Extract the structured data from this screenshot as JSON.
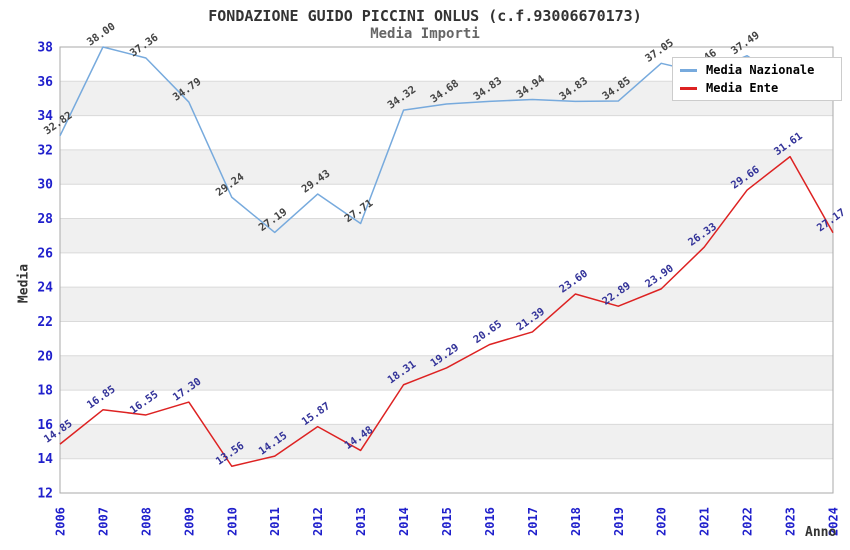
{
  "title": "FONDAZIONE GUIDO PICCINI ONLUS (c.f.93006670173)",
  "subtitle": "Media Importi",
  "chart_data": {
    "type": "line",
    "x": [
      2006,
      2007,
      2008,
      2009,
      2010,
      2011,
      2012,
      2013,
      2014,
      2015,
      2016,
      2017,
      2018,
      2019,
      2020,
      2021,
      2022,
      2023,
      2024
    ],
    "xlabel": "Anno",
    "ylabel": "Media",
    "ylim": [
      12,
      38
    ],
    "ytick_step": 2,
    "grid": true,
    "band_fill": true,
    "legend_position": "top-right",
    "series": [
      {
        "name": "Media Nazionale",
        "color": "#77aadd",
        "label_color": "#444444",
        "values": [
          32.82,
          38.0,
          37.36,
          34.79,
          29.24,
          27.19,
          29.43,
          27.71,
          34.32,
          34.68,
          34.83,
          34.94,
          34.83,
          34.85,
          37.05,
          36.46,
          37.49,
          35.8,
          35.0
        ],
        "point_labels": [
          "32.82",
          "38.00",
          "37.36",
          "34.79",
          "29.24",
          "27.19",
          "29.43",
          "27.71",
          "34.32",
          "34.68",
          "34.83",
          "34.94",
          "34.83",
          "34.85",
          "37.05",
          "36.46",
          "37.49",
          null,
          null
        ]
      },
      {
        "name": "Media Ente",
        "color": "#dd2222",
        "label_color": "#333399",
        "values": [
          14.85,
          16.85,
          16.55,
          17.3,
          13.56,
          14.15,
          15.87,
          14.48,
          18.31,
          19.29,
          20.65,
          21.39,
          23.6,
          22.89,
          23.9,
          26.33,
          29.66,
          31.61,
          27.17
        ],
        "point_labels": [
          "14.85",
          "16.85",
          "16.55",
          "17.30",
          "13.56",
          "14.15",
          "15.87",
          "14.48",
          "18.31",
          "19.29",
          "20.65",
          "21.39",
          "23.60",
          "22.89",
          "23.90",
          "26.33",
          "29.66",
          "31.61",
          "27.17"
        ]
      }
    ],
    "style": {
      "band_color": "#f0f0f0",
      "grid_color": "#dadada",
      "axis_color": "#aaaaaa",
      "tick_label_color": "#2020cc"
    }
  }
}
